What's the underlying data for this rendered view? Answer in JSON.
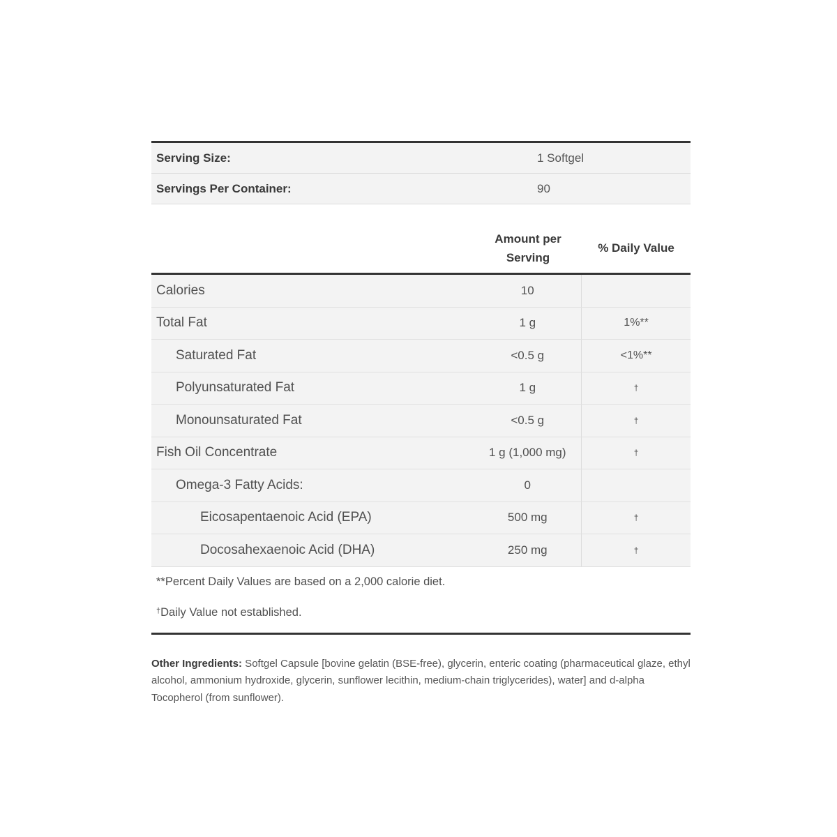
{
  "serving": [
    {
      "label": "Serving Size:",
      "value": "1 Softgel"
    },
    {
      "label": "Servings Per Container:",
      "value": "90"
    }
  ],
  "header": {
    "amount_line1": "Amount per",
    "amount_line2": "Serving",
    "daily_value": "% Daily Value"
  },
  "rows": [
    {
      "name": "Calories",
      "amount": "10",
      "dv": "",
      "indent": 0
    },
    {
      "name": "Total Fat",
      "amount": "1 g",
      "dv": "1%**",
      "indent": 0
    },
    {
      "name": "Saturated Fat",
      "amount": "<0.5 g",
      "dv": "<1%**",
      "indent": 1
    },
    {
      "name": "Polyunsaturated Fat",
      "amount": "1 g",
      "dv": "†",
      "indent": 1
    },
    {
      "name": "Monounsaturated Fat",
      "amount": "<0.5 g",
      "dv": "†",
      "indent": 1
    },
    {
      "name": "Fish Oil Concentrate",
      "amount": "1 g (1,000 mg)",
      "dv": "†",
      "indent": 0
    },
    {
      "name": "Omega-3 Fatty Acids:",
      "amount": "0",
      "dv": "",
      "indent": 1
    },
    {
      "name": "Eicosapentaenoic Acid (EPA)",
      "amount": "500 mg",
      "dv": "†",
      "indent": 2
    },
    {
      "name": "Docosahexaenoic Acid (DHA)",
      "amount": "250 mg",
      "dv": "†",
      "indent": 2
    }
  ],
  "footnotes": {
    "percent": "**Percent Daily Values are based on a 2,000 calorie diet.",
    "dagger": "†",
    "not_established": "Daily Value not established."
  },
  "ingredients": {
    "label": "Other Ingredients:",
    "text": " Softgel Capsule [bovine gelatin (BSE-free), glycerin, enteric coating (pharmaceutical glaze, ethyl alcohol, ammonium hydroxide, glycerin, sunflower lecithin, medium-chain triglycerides), water] and d-alpha Tocopherol (from sunflower)."
  }
}
